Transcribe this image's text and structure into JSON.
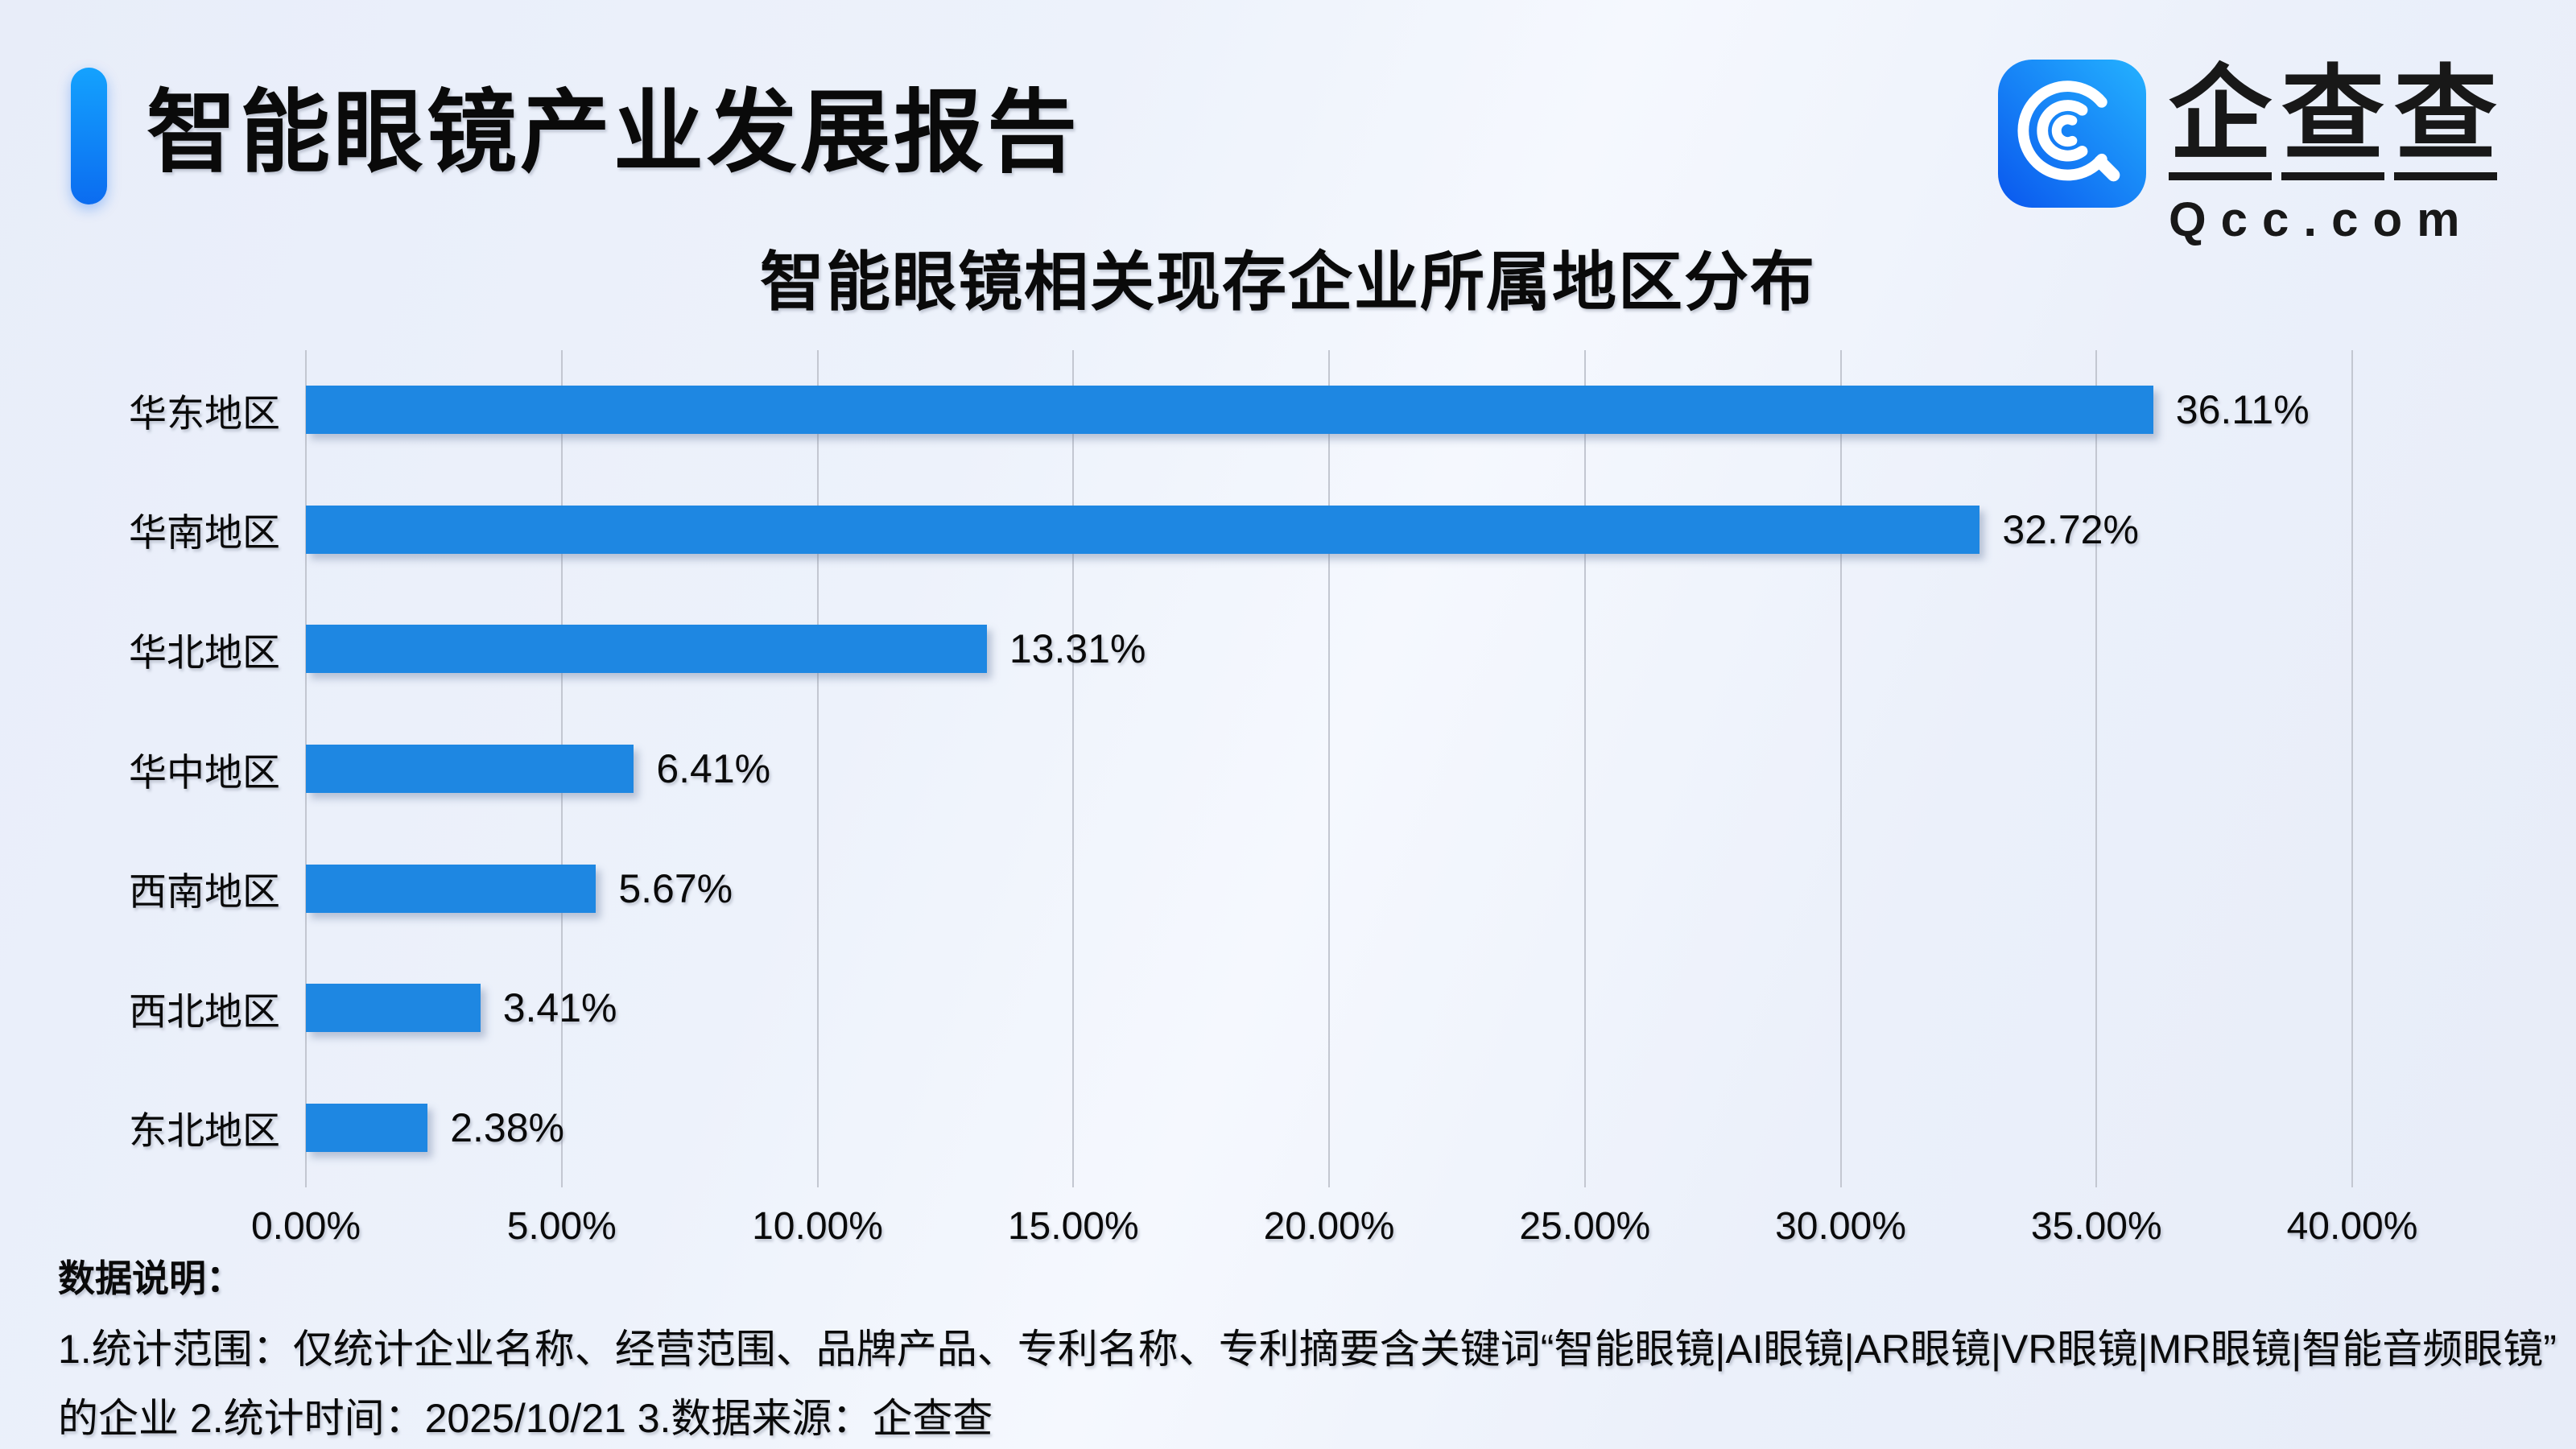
{
  "header": {
    "title": "智能眼镜产业发展报告"
  },
  "logo": {
    "icon": "qcc-magnifier-icon",
    "cn": "企查查",
    "en": "Qcc.com",
    "square_gradient_top": "#24b2ff",
    "square_gradient_bottom": "#0a57ee"
  },
  "chart_data": {
    "type": "bar",
    "orientation": "horizontal",
    "title": "智能眼镜相关现存企业所属地区分布",
    "categories": [
      "华东地区",
      "华南地区",
      "华北地区",
      "华中地区",
      "西南地区",
      "西北地区",
      "东北地区"
    ],
    "values": [
      36.11,
      32.72,
      13.31,
      6.41,
      5.67,
      3.41,
      2.38
    ],
    "value_labels": [
      "36.11%",
      "32.72%",
      "13.31%",
      "6.41%",
      "5.67%",
      "3.41%",
      "2.38%"
    ],
    "x_ticks": [
      "0.00%",
      "5.00%",
      "10.00%",
      "15.00%",
      "20.00%",
      "25.00%",
      "30.00%",
      "35.00%",
      "40.00%"
    ],
    "xlim": [
      0,
      40
    ],
    "xlabel": "",
    "ylabel": "",
    "grid": true,
    "legend": null,
    "bar_color": "#1E87E2"
  },
  "footer": {
    "heading": "数据说明：",
    "line1": "1.统计范围：仅统计企业名称、经营范围、品牌产品、专利名称、专利摘要含关键词“智能眼镜|AI眼镜|AR眼镜|VR眼镜|MR眼镜|智能音频眼镜”",
    "line2": "的企业 2.统计时间：2025/10/21 3.数据来源：企查查"
  },
  "colors": {
    "bar": "#1E87E2",
    "accent_pill_top": "#14a2fe",
    "accent_pill_bottom": "#0b6cf0",
    "background": "#edf2fb",
    "gridline": "#c3c7d1",
    "text": "#0a0a0a"
  }
}
